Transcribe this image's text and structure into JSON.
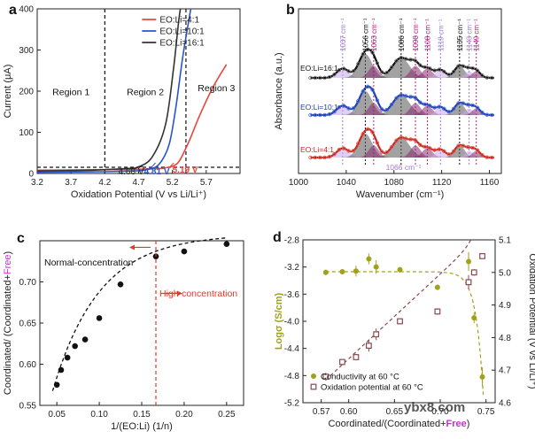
{
  "chart_data": [
    {
      "panel": "a",
      "type": "line",
      "xlabel": "Oxidation Potential (V vs Li/Li⁺)",
      "ylabel": "Current (μA)",
      "xlim": [
        3.2,
        6.2
      ],
      "ylim": [
        0,
        400
      ],
      "xticks": [
        3.2,
        3.7,
        4.2,
        4.7,
        5.2,
        5.7
      ],
      "xtick_labels": [
        "3.2",
        "3.7",
        "4.2",
        "4.7",
        "5.2",
        "5.7"
      ],
      "yticks": [
        0,
        100,
        200,
        300,
        400
      ],
      "ytick_labels": [
        "0",
        "100",
        "200",
        "300",
        "400"
      ],
      "legend": [
        "EO:Li=4:1",
        "EO:Li=10:1",
        "EO:Li=16:1"
      ],
      "legend_position": "top-right",
      "series": [
        {
          "name": "EO:Li=4:1",
          "color": "#e8463c",
          "x": [
            3.2,
            4.0,
            4.6,
            5.0,
            5.1,
            5.19,
            5.3,
            5.45,
            5.6,
            5.8,
            6.0
          ],
          "y": [
            8,
            9,
            10,
            12,
            14,
            17,
            30,
            80,
            140,
            210,
            265
          ]
        },
        {
          "name": "EO:Li=10:1",
          "color": "#2b55c7",
          "x": [
            3.2,
            4.0,
            4.6,
            4.81,
            5.0,
            5.15,
            5.25,
            5.35,
            5.45,
            5.6
          ],
          "y": [
            3,
            4,
            6,
            9,
            22,
            70,
            160,
            280,
            380,
            520
          ]
        },
        {
          "name": "EO:Li=16:1",
          "color": "#333333",
          "x": [
            3.2,
            4.0,
            4.5,
            4.68,
            4.9,
            5.1,
            5.22,
            5.3,
            5.38
          ],
          "y": [
            6,
            8,
            12,
            15,
            40,
            120,
            260,
            380,
            460
          ]
        }
      ],
      "vlines": [
        4.2,
        5.4
      ],
      "hline": 15,
      "regions": [
        "Region 1",
        "Region 2",
        "Region 3"
      ],
      "annotations": [
        {
          "text": "4.68 V",
          "x": 4.68,
          "color": "#222222"
        },
        {
          "text": "4.81 V",
          "x": 4.81,
          "color": "#2b55c7"
        },
        {
          "text": "5.19 V",
          "x": 5.19,
          "color": "#e8463c"
        }
      ]
    },
    {
      "panel": "b",
      "type": "line",
      "xlabel": "Wavenumber (cm⁻¹)",
      "ylabel": "Absorbance (a.u.)",
      "xlim": [
        1000,
        1170
      ],
      "xticks": [
        1000,
        1040,
        1080,
        1120,
        1160
      ],
      "xtick_labels": [
        "1000",
        "1040",
        "1080",
        "1120",
        "1160"
      ],
      "series": [
        {
          "name": "EO:Li=16:1",
          "color": "#111111",
          "mark_color": "#777777"
        },
        {
          "name": "EO:Li=10:1",
          "color": "#1f3fb5",
          "mark_color": "#4a6ed8"
        },
        {
          "name": "EO:Li=4:1",
          "color": "#c8281e",
          "mark_color": "#e25a50"
        }
      ],
      "peaks": [
        {
          "label": "1037 cm⁻¹",
          "x": 1037,
          "color": "#a07ad0"
        },
        {
          "label": "1056 cm⁻¹",
          "x": 1056,
          "color": "#111111"
        },
        {
          "label": "1063 cm⁻¹",
          "x": 1063,
          "color": "#b0207a"
        },
        {
          "label": "1086 cm⁻¹",
          "x": 1086,
          "color": "#111111"
        },
        {
          "label": "1098 cm⁻¹",
          "x": 1098,
          "color": "#b0207a"
        },
        {
          "label": "1108 cm⁻¹",
          "x": 1108,
          "color": "#b0207a"
        },
        {
          "label": "1119 cm⁻¹",
          "x": 1119,
          "color": "#a07ad0"
        },
        {
          "label": "1135 cm⁻¹",
          "x": 1135,
          "color": "#111111"
        },
        {
          "label": "1143 cm⁻¹",
          "x": 1143,
          "color": "#a07ad0"
        },
        {
          "label": "1149 cm⁻¹",
          "x": 1149,
          "color": "#b0207a"
        }
      ],
      "bottom_annotation": "1066 cm⁻¹"
    },
    {
      "panel": "c",
      "type": "scatter",
      "xlabel": "1/(EO:Li) (1/n)",
      "ylabel_parts": [
        "Coordinated/ (Coordinated+",
        "Free",
        ")"
      ],
      "xlim": [
        0.03,
        0.27
      ],
      "ylim": [
        0.55,
        0.75
      ],
      "xticks": [
        0.05,
        0.1,
        0.15,
        0.2,
        0.25
      ],
      "xtick_labels": [
        "0.05",
        "0.10",
        "0.15",
        "0.20",
        "0.25"
      ],
      "yticks": [
        0.55,
        0.6,
        0.65,
        0.7
      ],
      "ytick_labels": [
        "0.55",
        "0.60",
        "0.65",
        "0.70"
      ],
      "x": [
        0.05,
        0.055,
        0.0625,
        0.0714,
        0.0833,
        0.1,
        0.125,
        0.1667,
        0.2,
        0.25
      ],
      "y": [
        0.575,
        0.593,
        0.608,
        0.622,
        0.63,
        0.656,
        0.697,
        0.731,
        0.737,
        0.746
      ],
      "vline": 0.1667,
      "labels": [
        "Normal-concentration",
        "High-concentration"
      ]
    },
    {
      "panel": "d",
      "type": "scatter",
      "xlabel_parts": [
        "Coordinated/(Coordinated+",
        "Free",
        ")"
      ],
      "ylabel_left": "Logσ (S/cm)",
      "ylabel_right": "Oxidation Potential (V vs Li/Li⁺)",
      "xlim": [
        0.55,
        0.76
      ],
      "ylim_left": [
        -5.2,
        -2.8
      ],
      "ylim_right": [
        4.6,
        5.1
      ],
      "xticks": [
        0.57,
        0.6,
        0.65,
        0.7,
        0.75
      ],
      "xtick_labels": [
        "0.57",
        "0.60",
        "0.65",
        "0.70",
        "0.75"
      ],
      "yticks_left": [
        -5.2,
        -4.8,
        -4.4,
        -4.0,
        -3.6,
        -3.2,
        -2.8
      ],
      "ytick_labels_left": [
        "-5.2",
        "-4.8",
        "-4.4",
        "-4.0",
        "-3.6",
        "-3.2",
        "-2.8"
      ],
      "yticks_right": [
        4.6,
        4.7,
        4.8,
        4.9,
        5.0,
        5.1
      ],
      "ytick_labels_right": [
        "4.6",
        "4.7",
        "4.8",
        "4.9",
        "5.0",
        "5.1"
      ],
      "series": [
        {
          "name": "Conductivity at 60 °C",
          "axis": "left",
          "color": "#a0a21c",
          "x": [
            0.575,
            0.593,
            0.608,
            0.622,
            0.63,
            0.656,
            0.697,
            0.731,
            0.737,
            0.746
          ],
          "y": [
            -3.28,
            -3.27,
            -3.26,
            -3.08,
            -3.2,
            -3.24,
            -3.5,
            -3.12,
            -3.95,
            -4.82
          ],
          "err": [
            0.04,
            0.04,
            0.08,
            0.08,
            0.1,
            0.04,
            0.04,
            0.14,
            0.08,
            0.14
          ]
        },
        {
          "name": "Oxidation potential at 60 °C",
          "axis": "right",
          "color": "#8a4a50",
          "x": [
            0.575,
            0.593,
            0.608,
            0.622,
            0.63,
            0.656,
            0.697,
            0.731,
            0.737,
            0.746
          ],
          "y": [
            4.68,
            4.725,
            4.74,
            4.775,
            4.81,
            4.85,
            4.88,
            4.97,
            5.0,
            5.05
          ],
          "err": [
            0.012,
            0.008,
            0.01,
            0.018,
            0.018,
            0.004,
            0.01,
            0.022,
            0.01,
            0.006
          ]
        }
      ],
      "legend_position": "bottom-left"
    }
  ],
  "panel_labels": [
    "a",
    "b",
    "c",
    "d"
  ],
  "watermark": "ybx8.com"
}
